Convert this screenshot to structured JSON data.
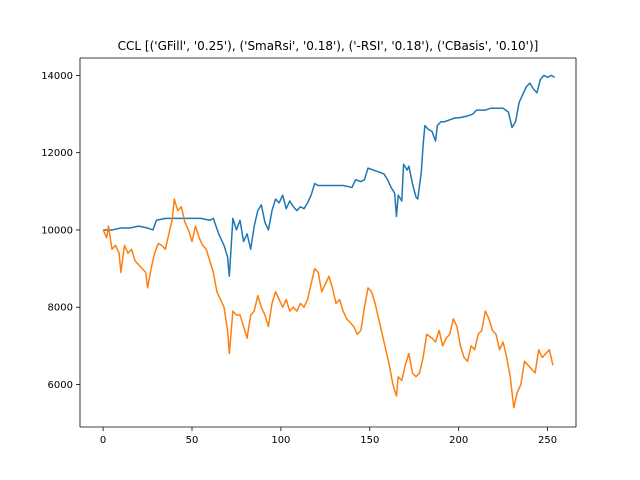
{
  "chart_data": {
    "type": "line",
    "title": "CCL [('GFill', '0.25'), ('SmaRsi', '0.18'), ('-RSI', '0.18'), ('CBasis', '0.10')]",
    "xlabel": "",
    "ylabel": "",
    "xlim": [
      -13,
      266
    ],
    "ylim": [
      4900,
      14450
    ],
    "x_ticks": [
      0,
      50,
      100,
      150,
      200,
      250
    ],
    "y_ticks": [
      6000,
      8000,
      10000,
      12000,
      14000
    ],
    "grid": false,
    "legend": "none",
    "series": [
      {
        "color": "#1f77b4",
        "points": [
          [
            0,
            10000
          ],
          [
            5,
            10000
          ],
          [
            10,
            10050
          ],
          [
            15,
            10050
          ],
          [
            20,
            10100
          ],
          [
            25,
            10050
          ],
          [
            28,
            10000
          ],
          [
            30,
            10250
          ],
          [
            35,
            10300
          ],
          [
            40,
            10300
          ],
          [
            45,
            10300
          ],
          [
            50,
            10300
          ],
          [
            55,
            10300
          ],
          [
            60,
            10250
          ],
          [
            62,
            10300
          ],
          [
            65,
            9900
          ],
          [
            68,
            9600
          ],
          [
            70,
            9300
          ],
          [
            71,
            8800
          ],
          [
            73,
            10300
          ],
          [
            75,
            10000
          ],
          [
            77,
            10250
          ],
          [
            79,
            9700
          ],
          [
            81,
            9900
          ],
          [
            83,
            9500
          ],
          [
            85,
            10100
          ],
          [
            87,
            10500
          ],
          [
            89,
            10650
          ],
          [
            91,
            10200
          ],
          [
            93,
            10000
          ],
          [
            95,
            10500
          ],
          [
            97,
            10800
          ],
          [
            99,
            10700
          ],
          [
            101,
            10900
          ],
          [
            103,
            10550
          ],
          [
            105,
            10750
          ],
          [
            107,
            10600
          ],
          [
            109,
            10500
          ],
          [
            111,
            10600
          ],
          [
            113,
            10550
          ],
          [
            115,
            10700
          ],
          [
            117,
            10900
          ],
          [
            119,
            11200
          ],
          [
            121,
            11150
          ],
          [
            125,
            11150
          ],
          [
            130,
            11150
          ],
          [
            135,
            11150
          ],
          [
            140,
            11100
          ],
          [
            142,
            11300
          ],
          [
            145,
            11250
          ],
          [
            147,
            11300
          ],
          [
            149,
            11600
          ],
          [
            152,
            11550
          ],
          [
            155,
            11500
          ],
          [
            158,
            11450
          ],
          [
            160,
            11300
          ],
          [
            162,
            11100
          ],
          [
            164,
            10950
          ],
          [
            165,
            10350
          ],
          [
            166,
            10900
          ],
          [
            168,
            10750
          ],
          [
            169,
            11700
          ],
          [
            171,
            11550
          ],
          [
            172,
            11650
          ],
          [
            174,
            11200
          ],
          [
            176,
            10850
          ],
          [
            177,
            10800
          ],
          [
            179,
            11500
          ],
          [
            180,
            12200
          ],
          [
            181,
            12700
          ],
          [
            183,
            12600
          ],
          [
            185,
            12550
          ],
          [
            187,
            12300
          ],
          [
            188,
            12700
          ],
          [
            190,
            12800
          ],
          [
            192,
            12800
          ],
          [
            195,
            12850
          ],
          [
            198,
            12900
          ],
          [
            200,
            12900
          ],
          [
            205,
            12950
          ],
          [
            208,
            13000
          ],
          [
            210,
            13100
          ],
          [
            215,
            13100
          ],
          [
            218,
            13150
          ],
          [
            220,
            13150
          ],
          [
            225,
            13150
          ],
          [
            228,
            13050
          ],
          [
            230,
            12650
          ],
          [
            232,
            12800
          ],
          [
            234,
            13300
          ],
          [
            236,
            13500
          ],
          [
            238,
            13700
          ],
          [
            240,
            13800
          ],
          [
            242,
            13650
          ],
          [
            244,
            13550
          ],
          [
            246,
            13900
          ],
          [
            248,
            14000
          ],
          [
            250,
            13950
          ],
          [
            252,
            14000
          ],
          [
            254,
            13950
          ]
        ]
      },
      {
        "color": "#ff7f0e",
        "points": [
          [
            0,
            10000
          ],
          [
            2,
            9800
          ],
          [
            3,
            10100
          ],
          [
            5,
            9500
          ],
          [
            7,
            9600
          ],
          [
            9,
            9400
          ],
          [
            10,
            8900
          ],
          [
            12,
            9600
          ],
          [
            14,
            9400
          ],
          [
            16,
            9500
          ],
          [
            18,
            9200
          ],
          [
            20,
            9100
          ],
          [
            22,
            9000
          ],
          [
            24,
            8900
          ],
          [
            25,
            8500
          ],
          [
            27,
            9000
          ],
          [
            29,
            9400
          ],
          [
            31,
            9650
          ],
          [
            33,
            9600
          ],
          [
            35,
            9500
          ],
          [
            37,
            9900
          ],
          [
            39,
            10300
          ],
          [
            40,
            10800
          ],
          [
            42,
            10500
          ],
          [
            44,
            10600
          ],
          [
            46,
            10200
          ],
          [
            48,
            10000
          ],
          [
            50,
            9700
          ],
          [
            52,
            10100
          ],
          [
            54,
            9800
          ],
          [
            56,
            9600
          ],
          [
            58,
            9500
          ],
          [
            60,
            9200
          ],
          [
            62,
            8900
          ],
          [
            64,
            8400
          ],
          [
            66,
            8200
          ],
          [
            68,
            8000
          ],
          [
            70,
            7400
          ],
          [
            71,
            6800
          ],
          [
            73,
            7900
          ],
          [
            75,
            7800
          ],
          [
            77,
            7800
          ],
          [
            79,
            7500
          ],
          [
            81,
            7200
          ],
          [
            83,
            7800
          ],
          [
            85,
            7900
          ],
          [
            87,
            8300
          ],
          [
            89,
            8000
          ],
          [
            91,
            7800
          ],
          [
            93,
            7500
          ],
          [
            95,
            8100
          ],
          [
            97,
            8400
          ],
          [
            99,
            8200
          ],
          [
            101,
            8000
          ],
          [
            103,
            8200
          ],
          [
            105,
            7900
          ],
          [
            107,
            8000
          ],
          [
            109,
            7900
          ],
          [
            111,
            8100
          ],
          [
            113,
            8000
          ],
          [
            115,
            8200
          ],
          [
            117,
            8600
          ],
          [
            119,
            9000
          ],
          [
            121,
            8900
          ],
          [
            123,
            8400
          ],
          [
            125,
            8600
          ],
          [
            127,
            8800
          ],
          [
            129,
            8500
          ],
          [
            131,
            8100
          ],
          [
            133,
            8200
          ],
          [
            135,
            7900
          ],
          [
            137,
            7700
          ],
          [
            139,
            7600
          ],
          [
            141,
            7500
          ],
          [
            143,
            7300
          ],
          [
            145,
            7400
          ],
          [
            147,
            8000
          ],
          [
            149,
            8500
          ],
          [
            151,
            8400
          ],
          [
            153,
            8100
          ],
          [
            155,
            7700
          ],
          [
            157,
            7300
          ],
          [
            159,
            6900
          ],
          [
            161,
            6500
          ],
          [
            163,
            6000
          ],
          [
            165,
            5700
          ],
          [
            166,
            6200
          ],
          [
            168,
            6100
          ],
          [
            170,
            6500
          ],
          [
            172,
            6800
          ],
          [
            174,
            6300
          ],
          [
            176,
            6200
          ],
          [
            178,
            6300
          ],
          [
            180,
            6700
          ],
          [
            182,
            7300
          ],
          [
            185,
            7200
          ],
          [
            187,
            7100
          ],
          [
            189,
            7400
          ],
          [
            191,
            7000
          ],
          [
            193,
            7200
          ],
          [
            195,
            7300
          ],
          [
            197,
            7700
          ],
          [
            199,
            7500
          ],
          [
            201,
            7000
          ],
          [
            203,
            6700
          ],
          [
            205,
            6600
          ],
          [
            207,
            7000
          ],
          [
            209,
            6900
          ],
          [
            211,
            7300
          ],
          [
            213,
            7400
          ],
          [
            215,
            7900
          ],
          [
            217,
            7700
          ],
          [
            219,
            7400
          ],
          [
            221,
            7300
          ],
          [
            223,
            6900
          ],
          [
            225,
            7100
          ],
          [
            227,
            6700
          ],
          [
            229,
            6200
          ],
          [
            231,
            5400
          ],
          [
            233,
            5800
          ],
          [
            235,
            6000
          ],
          [
            237,
            6600
          ],
          [
            239,
            6500
          ],
          [
            241,
            6400
          ],
          [
            243,
            6300
          ],
          [
            245,
            6900
          ],
          [
            247,
            6700
          ],
          [
            249,
            6800
          ],
          [
            251,
            6900
          ],
          [
            252,
            6700
          ],
          [
            253,
            6500
          ]
        ]
      }
    ]
  }
}
